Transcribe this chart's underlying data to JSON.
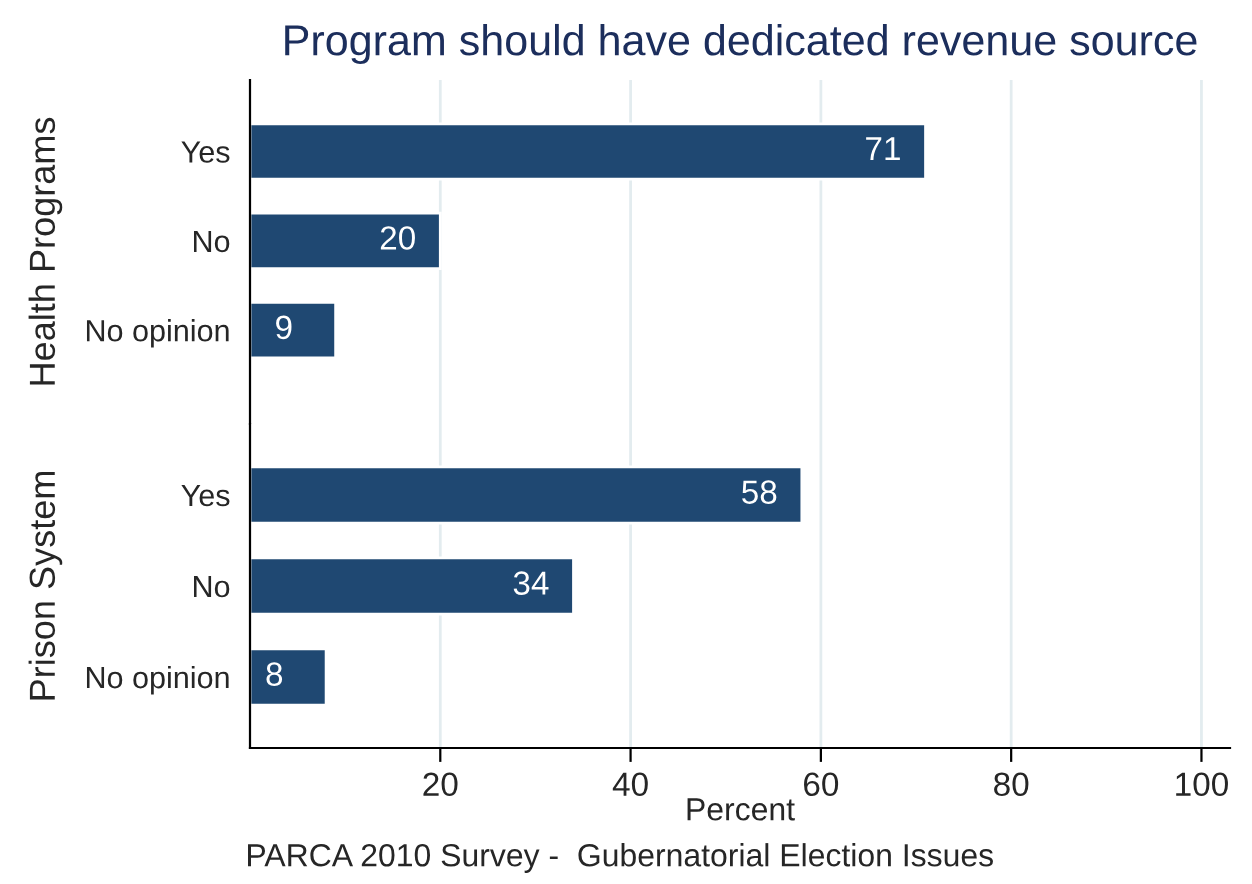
{
  "chart_data": [
    {
      "type": "bar",
      "orientation": "horizontal",
      "title": "Program should have dedicated revenue source",
      "ylabel": "Health Programs",
      "categories": [
        "Yes",
        "No",
        "No opinion"
      ],
      "values": [
        71,
        20,
        9
      ],
      "color": "#1f4872",
      "data_labels": true,
      "xlim": [
        0,
        103
      ],
      "xticks": [
        20,
        40,
        60,
        80,
        100
      ],
      "grid": "x",
      "tick_labels": "y"
    },
    {
      "type": "bar",
      "orientation": "horizontal",
      "ylabel": "Prison System",
      "xlabel": "Percent",
      "categories": [
        "Yes",
        "No",
        "No opinion"
      ],
      "values": [
        58,
        34,
        8
      ],
      "color": "#1f4872",
      "data_labels": true,
      "xlim": [
        0,
        103
      ],
      "xticks": [
        20,
        40,
        60,
        80,
        100
      ],
      "grid": "x",
      "annotations": [
        "PARCA 2010 Survey -  Gubernatorial Election Issues"
      ]
    }
  ]
}
